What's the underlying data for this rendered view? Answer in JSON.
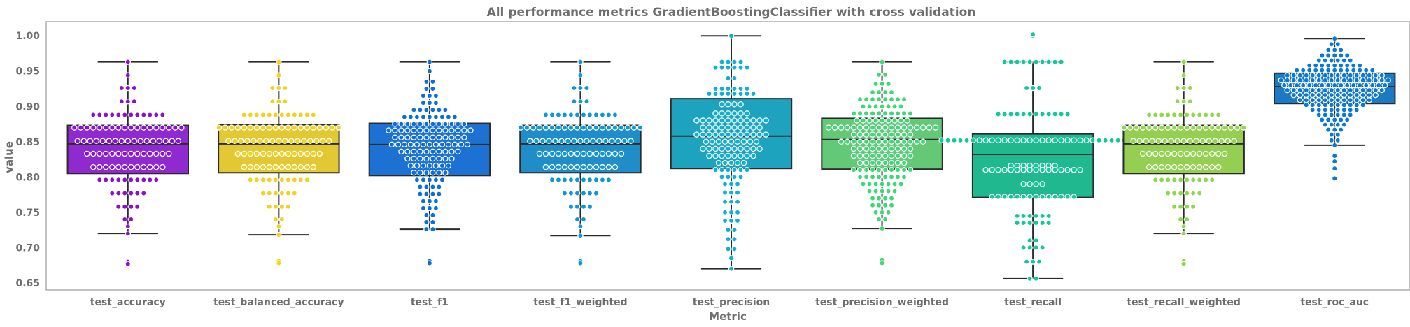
{
  "chart_data": {
    "type": "box",
    "title": "All performance metrics GradientBoostingClassifier with cross validation",
    "xlabel": "Metric",
    "ylabel": "value",
    "ylim": [
      0.64,
      1.02
    ],
    "yticks": [
      0.65,
      0.7,
      0.75,
      0.8,
      0.85,
      0.9,
      0.95,
      1.0
    ],
    "ytick_labels": [
      "0.65",
      "0.70",
      "0.75",
      "0.80",
      "0.85",
      "0.90",
      "0.95",
      "1.00"
    ],
    "grid": false,
    "overlay": "swarm",
    "categories": [
      {
        "name": "test_accuracy",
        "color": "#8e2ad0",
        "dot_color": "#8a0fd6",
        "q1": 0.805,
        "median": 0.847,
        "q3": 0.873,
        "whisker_low": 0.72,
        "whisker_high": 0.963,
        "outliers": [
          0.68,
          0.677
        ],
        "levels": [
          [
            0.963,
            1
          ],
          [
            0.944,
            1
          ],
          [
            0.926,
            3
          ],
          [
            0.907,
            3
          ],
          [
            0.888,
            12
          ],
          [
            0.87,
            18
          ],
          [
            0.851,
            17
          ],
          [
            0.833,
            14
          ],
          [
            0.814,
            12
          ],
          [
            0.796,
            10
          ],
          [
            0.777,
            6
          ],
          [
            0.758,
            4
          ],
          [
            0.74,
            2
          ],
          [
            0.73,
            1
          ],
          [
            0.72,
            1
          ]
        ]
      },
      {
        "name": "test_balanced_accuracy",
        "color": "#e2c934",
        "dot_color": "#f2d21a",
        "q1": 0.806,
        "median": 0.847,
        "q3": 0.874,
        "whisker_low": 0.718,
        "whisker_high": 0.963,
        "outliers": [
          0.681,
          0.678
        ],
        "levels": [
          [
            0.963,
            1
          ],
          [
            0.944,
            1
          ],
          [
            0.926,
            3
          ],
          [
            0.907,
            3
          ],
          [
            0.888,
            12
          ],
          [
            0.87,
            20
          ],
          [
            0.851,
            17
          ],
          [
            0.833,
            14
          ],
          [
            0.814,
            12
          ],
          [
            0.796,
            10
          ],
          [
            0.777,
            6
          ],
          [
            0.758,
            4
          ],
          [
            0.74,
            2
          ],
          [
            0.73,
            1
          ],
          [
            0.718,
            1
          ]
        ]
      },
      {
        "name": "test_f1",
        "color": "#1c71d2",
        "dot_color": "#0a6fdc",
        "q1": 0.802,
        "median": 0.846,
        "q3": 0.876,
        "whisker_low": 0.726,
        "whisker_high": 0.963,
        "outliers": [
          0.681,
          0.678
        ],
        "levels": [
          [
            0.963,
            1
          ],
          [
            0.95,
            1
          ],
          [
            0.935,
            2
          ],
          [
            0.925,
            2
          ],
          [
            0.915,
            3
          ],
          [
            0.905,
            3
          ],
          [
            0.895,
            6
          ],
          [
            0.885,
            9
          ],
          [
            0.875,
            12
          ],
          [
            0.866,
            14
          ],
          [
            0.856,
            12
          ],
          [
            0.846,
            13
          ],
          [
            0.836,
            10
          ],
          [
            0.826,
            8
          ],
          [
            0.816,
            7
          ],
          [
            0.806,
            6
          ],
          [
            0.796,
            5
          ],
          [
            0.786,
            4
          ],
          [
            0.776,
            4
          ],
          [
            0.766,
            3
          ],
          [
            0.756,
            3
          ],
          [
            0.746,
            2
          ],
          [
            0.736,
            2
          ],
          [
            0.726,
            2
          ]
        ]
      },
      {
        "name": "test_f1_weighted",
        "color": "#1f8ec8",
        "dot_color": "#0a98d8",
        "q1": 0.806,
        "median": 0.847,
        "q3": 0.873,
        "whisker_low": 0.717,
        "whisker_high": 0.963,
        "outliers": [
          0.681,
          0.678
        ],
        "levels": [
          [
            0.963,
            1
          ],
          [
            0.944,
            1
          ],
          [
            0.926,
            3
          ],
          [
            0.907,
            3
          ],
          [
            0.888,
            12
          ],
          [
            0.87,
            20
          ],
          [
            0.851,
            17
          ],
          [
            0.833,
            14
          ],
          [
            0.814,
            12
          ],
          [
            0.796,
            10
          ],
          [
            0.777,
            6
          ],
          [
            0.758,
            4
          ],
          [
            0.74,
            2
          ],
          [
            0.73,
            1
          ],
          [
            0.717,
            1
          ]
        ]
      },
      {
        "name": "test_precision",
        "color": "#1ea3be",
        "dot_color": "#0cb2d4",
        "q1": 0.812,
        "median": 0.858,
        "q3": 0.911,
        "whisker_low": 0.67,
        "whisker_high": 1.0,
        "outliers": [],
        "levels": [
          [
            1.0,
            1
          ],
          [
            0.963,
            4
          ],
          [
            0.955,
            6
          ],
          [
            0.94,
            2
          ],
          [
            0.925,
            6
          ],
          [
            0.918,
            8
          ],
          [
            0.903,
            4
          ],
          [
            0.89,
            6
          ],
          [
            0.88,
            12
          ],
          [
            0.87,
            10
          ],
          [
            0.86,
            12
          ],
          [
            0.85,
            9
          ],
          [
            0.84,
            10
          ],
          [
            0.83,
            8
          ],
          [
            0.82,
            5
          ],
          [
            0.81,
            6
          ],
          [
            0.8,
            4
          ],
          [
            0.79,
            3
          ],
          [
            0.778,
            3
          ],
          [
            0.765,
            3
          ],
          [
            0.75,
            3
          ],
          [
            0.738,
            3
          ],
          [
            0.725,
            2
          ],
          [
            0.712,
            2
          ],
          [
            0.698,
            2
          ],
          [
            0.685,
            1
          ],
          [
            0.67,
            1
          ]
        ]
      },
      {
        "name": "test_precision_weighted",
        "color": "#63c977",
        "dot_color": "#3fd877",
        "q1": 0.811,
        "median": 0.853,
        "q3": 0.883,
        "whisker_low": 0.727,
        "whisker_high": 0.963,
        "outliers": [
          0.683,
          0.678
        ],
        "levels": [
          [
            0.963,
            1
          ],
          [
            0.945,
            2
          ],
          [
            0.932,
            3
          ],
          [
            0.92,
            4
          ],
          [
            0.91,
            8
          ],
          [
            0.9,
            7
          ],
          [
            0.89,
            10
          ],
          [
            0.88,
            9
          ],
          [
            0.87,
            18
          ],
          [
            0.86,
            10
          ],
          [
            0.85,
            14
          ],
          [
            0.84,
            10
          ],
          [
            0.83,
            10
          ],
          [
            0.82,
            8
          ],
          [
            0.81,
            10
          ],
          [
            0.8,
            8
          ],
          [
            0.79,
            7
          ],
          [
            0.78,
            5
          ],
          [
            0.77,
            4
          ],
          [
            0.76,
            4
          ],
          [
            0.75,
            3
          ],
          [
            0.74,
            2
          ],
          [
            0.727,
            1
          ]
        ]
      },
      {
        "name": "test_recall",
        "color": "#1fb88f",
        "dot_color": "#0fc99a",
        "q1": 0.771,
        "median": 0.832,
        "q3": 0.861,
        "whisker_low": 0.656,
        "whisker_high": 0.963,
        "outliers": [
          1.0,
          1.002
        ],
        "levels": [
          [
            0.963,
            10
          ],
          [
            0.926,
            3
          ],
          [
            0.889,
            12
          ],
          [
            0.852,
            30
          ],
          [
            0.816,
            8
          ],
          [
            0.81,
            16
          ],
          [
            0.79,
            4
          ],
          [
            0.772,
            14
          ],
          [
            0.745,
            6
          ],
          [
            0.735,
            6
          ],
          [
            0.71,
            2
          ],
          [
            0.7,
            4
          ],
          [
            0.68,
            3
          ],
          [
            0.656,
            2
          ]
        ]
      },
      {
        "name": "test_recall_weighted",
        "color": "#94cf52",
        "dot_color": "#8fd84a",
        "q1": 0.805,
        "median": 0.847,
        "q3": 0.873,
        "whisker_low": 0.72,
        "whisker_high": 0.963,
        "outliers": [
          0.681,
          0.677
        ],
        "levels": [
          [
            0.963,
            1
          ],
          [
            0.944,
            1
          ],
          [
            0.926,
            3
          ],
          [
            0.907,
            3
          ],
          [
            0.888,
            12
          ],
          [
            0.87,
            20
          ],
          [
            0.851,
            17
          ],
          [
            0.833,
            14
          ],
          [
            0.814,
            12
          ],
          [
            0.796,
            10
          ],
          [
            0.777,
            6
          ],
          [
            0.758,
            4
          ],
          [
            0.74,
            2
          ],
          [
            0.73,
            1
          ],
          [
            0.72,
            1
          ]
        ]
      },
      {
        "name": "test_roc_auc",
        "color": "#1a7bc4",
        "dot_color": "#0a78d8",
        "q1": 0.904,
        "median": 0.928,
        "q3": 0.947,
        "whisker_low": 0.845,
        "whisker_high": 0.996,
        "outliers": [
          0.83,
          0.822,
          0.812,
          0.798
        ],
        "levels": [
          [
            0.996,
            1
          ],
          [
            0.988,
            2
          ],
          [
            0.98,
            3
          ],
          [
            0.972,
            5
          ],
          [
            0.965,
            6
          ],
          [
            0.958,
            9
          ],
          [
            0.951,
            13
          ],
          [
            0.944,
            16
          ],
          [
            0.937,
            18
          ],
          [
            0.93,
            17
          ],
          [
            0.923,
            16
          ],
          [
            0.916,
            14
          ],
          [
            0.909,
            12
          ],
          [
            0.902,
            10
          ],
          [
            0.895,
            8
          ],
          [
            0.888,
            6
          ],
          [
            0.881,
            5
          ],
          [
            0.874,
            4
          ],
          [
            0.867,
            3
          ],
          [
            0.86,
            2
          ],
          [
            0.852,
            2
          ],
          [
            0.845,
            1
          ]
        ]
      }
    ]
  }
}
